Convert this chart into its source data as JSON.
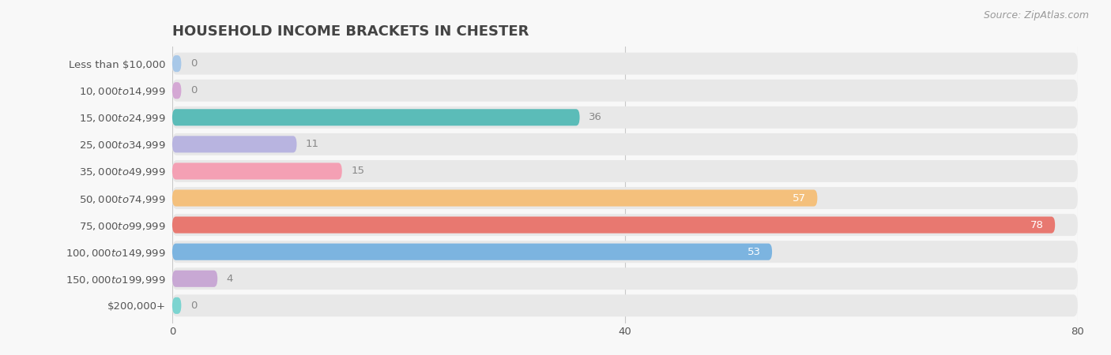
{
  "title": "HOUSEHOLD INCOME BRACKETS IN CHESTER",
  "source": "Source: ZipAtlas.com",
  "categories": [
    "Less than $10,000",
    "$10,000 to $14,999",
    "$15,000 to $24,999",
    "$25,000 to $34,999",
    "$35,000 to $49,999",
    "$50,000 to $74,999",
    "$75,000 to $99,999",
    "$100,000 to $149,999",
    "$150,000 to $199,999",
    "$200,000+"
  ],
  "values": [
    0,
    0,
    36,
    11,
    15,
    57,
    78,
    53,
    4,
    0
  ],
  "colors": [
    "#a8c8e8",
    "#d4a8d4",
    "#5bbcb8",
    "#b8b4e0",
    "#f4a0b4",
    "#f4c07c",
    "#e87870",
    "#7cb4e0",
    "#c8a8d4",
    "#7cd4d0"
  ],
  "xlim": [
    0,
    80
  ],
  "xticks": [
    0,
    40,
    80
  ],
  "bar_background_color": "#e8e8e8",
  "title_color": "#444444",
  "label_color": "#555555",
  "value_color_inside": "#ffffff",
  "value_color_outside": "#888888",
  "title_fontsize": 13,
  "label_fontsize": 9.5,
  "value_fontsize": 9.5,
  "tick_fontsize": 9.5,
  "source_fontsize": 9
}
